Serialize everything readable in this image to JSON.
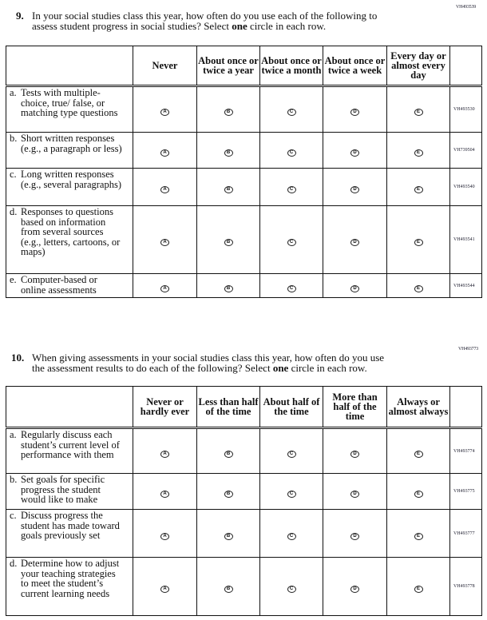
{
  "q9": {
    "code": "VH493539",
    "number": "9.",
    "text1": "In your social studies class this year, how often do you use each of the following to",
    "text2a": "assess student progress in social studies? Select ",
    "text2b": "one",
    "text2c": " circle in each row.",
    "columns": [
      "Never",
      "About once or twice a year",
      "About once or twice a month",
      "About once or twice a week",
      "Every day or almost every day"
    ],
    "bubbles": [
      "A",
      "B",
      "C",
      "D",
      "E"
    ],
    "rows": [
      {
        "letter": "a.",
        "text": "Tests with multiple-choice, true/ false, or matching type questions",
        "code": "VH493530"
      },
      {
        "letter": "b.",
        "text": "Short written responses (e.g., a paragraph or less)",
        "code": "VH739504"
      },
      {
        "letter": "c.",
        "text": "Long written responses (e.g., several paragraphs)",
        "code": "VH493540"
      },
      {
        "letter": "d.",
        "text": "Responses to questions based on information from several sources (e.g., letters, cartoons, or maps)",
        "code": "VH493541"
      },
      {
        "letter": "e.",
        "text": "Computer-based or online assessments",
        "code": "VH493544"
      }
    ]
  },
  "q10": {
    "code": "VH493773",
    "number": "10.",
    "text1": "When giving assessments in your social studies class this year, how often do you use",
    "text2a": "the assessment results to do each of the following? Select ",
    "text2b": "one",
    "text2c": " circle in each row.",
    "columns": [
      "Never or hardly ever",
      "Less than half of the time",
      "About half of the time",
      "More than half of the time",
      "Always or almost always"
    ],
    "bubbles": [
      "A",
      "B",
      "C",
      "D",
      "E"
    ],
    "rows": [
      {
        "letter": "a.",
        "text": "Regularly discuss each student’s current level of performance with them",
        "code": "VH493774"
      },
      {
        "letter": "b.",
        "text": "Set goals for specific progress the student would like to make",
        "code": "VH493775"
      },
      {
        "letter": "c.",
        "text": "Discuss progress the student has made toward goals previously set",
        "code": "VH493777"
      },
      {
        "letter": "d.",
        "text": "Determine how to adjust your teaching strategies to meet the student’s current learning needs",
        "code": "VH493778"
      }
    ]
  }
}
